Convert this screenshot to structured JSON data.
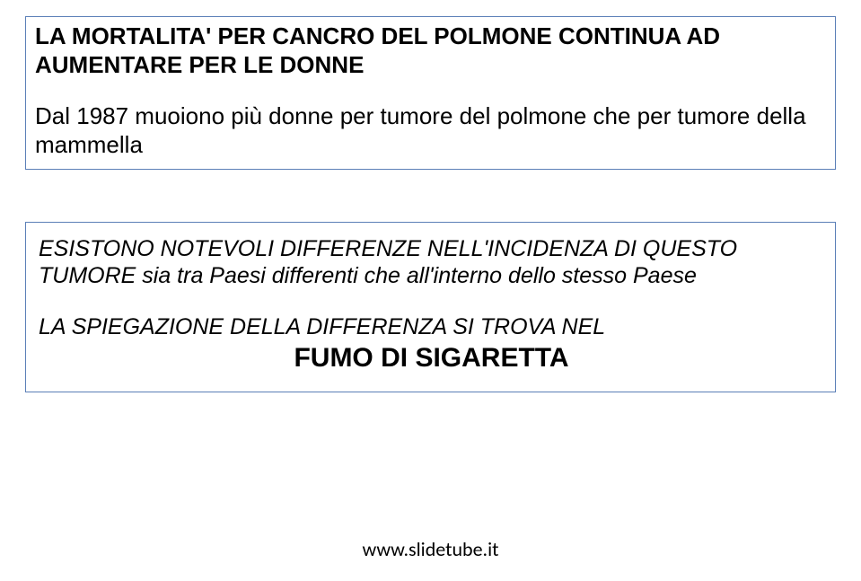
{
  "colors": {
    "background": "#ffffff",
    "text": "#000000",
    "box_border": "#5b7fb7"
  },
  "typography": {
    "body_font": "Comic Sans MS",
    "footer_font": "Calibri",
    "title_fontsize_pt": 26,
    "body_fontsize_pt": 25,
    "emph_fontsize_pt": 30,
    "footer_fontsize_pt": 22
  },
  "box1": {
    "title": "LA MORTALITA' PER CANCRO DEL POLMONE CONTINUA AD AUMENTARE PER LE DONNE",
    "body": "Dal 1987 muoiono più donne per tumore del polmone che per tumore della mammella"
  },
  "box2": {
    "line1": "ESISTONO NOTEVOLI DIFFERENZE NELL'INCIDENZA DI QUESTO TUMORE sia tra Paesi differenti che all'interno dello stesso Paese",
    "line2": "LA SPIEGAZIONE DELLA DIFFERENZA SI TROVA NEL",
    "emph": "FUMO DI SIGARETTA"
  },
  "footer": {
    "text": "www.slidetube.it"
  }
}
